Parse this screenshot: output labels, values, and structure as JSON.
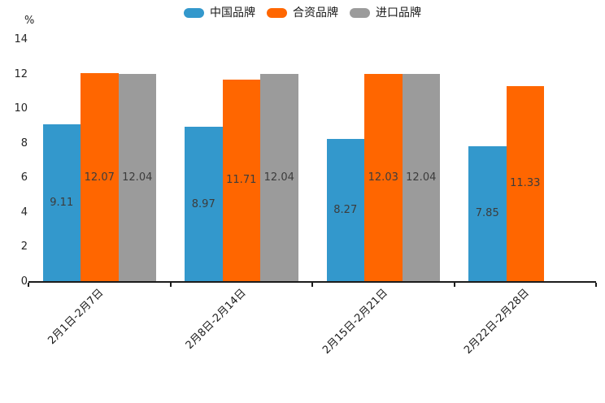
{
  "chart_data": {
    "type": "bar",
    "title": "",
    "xlabel": "",
    "ylabel": "%",
    "ylim": [
      0,
      14
    ],
    "yticks": [
      0,
      2,
      4,
      6,
      8,
      10,
      12,
      14
    ],
    "grid": false,
    "legend_position": "top",
    "value_labels_shown": true,
    "categories": [
      "2月1日-2月7日",
      "2月8日-2月14日",
      "2月15日-2月21日",
      "2月22日-2月28日"
    ],
    "series": [
      {
        "name": "中国品牌",
        "color": "#3398CC",
        "values": [
          9.11,
          8.97,
          8.27,
          7.85
        ]
      },
      {
        "name": "合资品牌",
        "color": "#FF6600",
        "values": [
          12.07,
          11.71,
          12.03,
          11.33
        ]
      },
      {
        "name": "进口品牌",
        "color": "#9B9B9B",
        "values": [
          12.04,
          12.04,
          12.04,
          null
        ]
      }
    ],
    "colors": {
      "axis": "#1c1c1c",
      "tick_text": "#262626",
      "value_label_text": "#3c3c3c",
      "background": "#ffffff"
    }
  }
}
